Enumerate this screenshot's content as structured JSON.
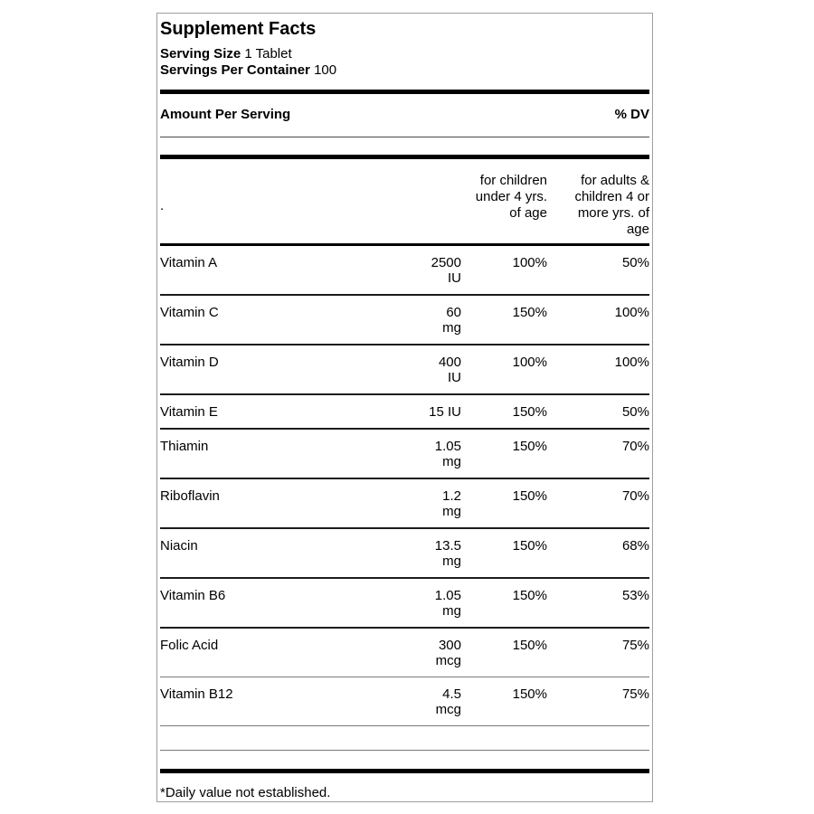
{
  "label": {
    "title": "Supplement Facts",
    "serving_size_label": "Serving Size",
    "serving_size_value": "1 Tablet",
    "servings_per_container_label": "Servings Per Container",
    "servings_per_container_value": "100",
    "amount_per_serving_header": "Amount Per Serving",
    "dv_header": "% DV",
    "footnote": "*Daily value not established."
  },
  "table": {
    "column_headers": {
      "nutrient": ".",
      "children": "for children\nunder 4 yrs.\nof age",
      "adults": "for adults &\nchildren 4 or\nmore yrs. of\nage"
    },
    "rows": [
      {
        "name": "Vitamin A",
        "amount": "2500 IU",
        "amount_lines": "2500\nIU",
        "children_dv": "100%",
        "adults_dv": "50%"
      },
      {
        "name": "Vitamin C",
        "amount": "60 mg",
        "amount_lines": "60\nmg",
        "children_dv": "150%",
        "adults_dv": "100%"
      },
      {
        "name": "Vitamin D",
        "amount": "400 IU",
        "amount_lines": "400\nIU",
        "children_dv": "100%",
        "adults_dv": "100%"
      },
      {
        "name": "Vitamin E",
        "amount": "15 IU",
        "amount_lines": "15 IU",
        "children_dv": "150%",
        "adults_dv": "50%"
      },
      {
        "name": "Thiamin",
        "amount": "1.05 mg",
        "amount_lines": "1.05\nmg",
        "children_dv": "150%",
        "adults_dv": "70%"
      },
      {
        "name": "Riboflavin",
        "amount": "1.2 mg",
        "amount_lines": "1.2\nmg",
        "children_dv": "150%",
        "adults_dv": "70%"
      },
      {
        "name": "Niacin",
        "amount": "13.5 mg",
        "amount_lines": "13.5\nmg",
        "children_dv": "150%",
        "adults_dv": "68%"
      },
      {
        "name": "Vitamin B6",
        "amount": "1.05 mg",
        "amount_lines": "1.05\nmg",
        "children_dv": "150%",
        "adults_dv": "53%"
      },
      {
        "name": "Folic Acid",
        "amount": "300 mcg",
        "amount_lines": "300\nmcg",
        "children_dv": "150%",
        "adults_dv": "75%"
      },
      {
        "name": "Vitamin B12",
        "amount": "4.5 mcg",
        "amount_lines": "4.5\nmcg",
        "children_dv": "150%",
        "adults_dv": "75%"
      }
    ]
  },
  "colors": {
    "text": "#000000",
    "rule_dark": "#1c1c1c",
    "rule_light": "#7a7a7a",
    "box_border": "#9e9e9e",
    "background": "#ffffff"
  }
}
